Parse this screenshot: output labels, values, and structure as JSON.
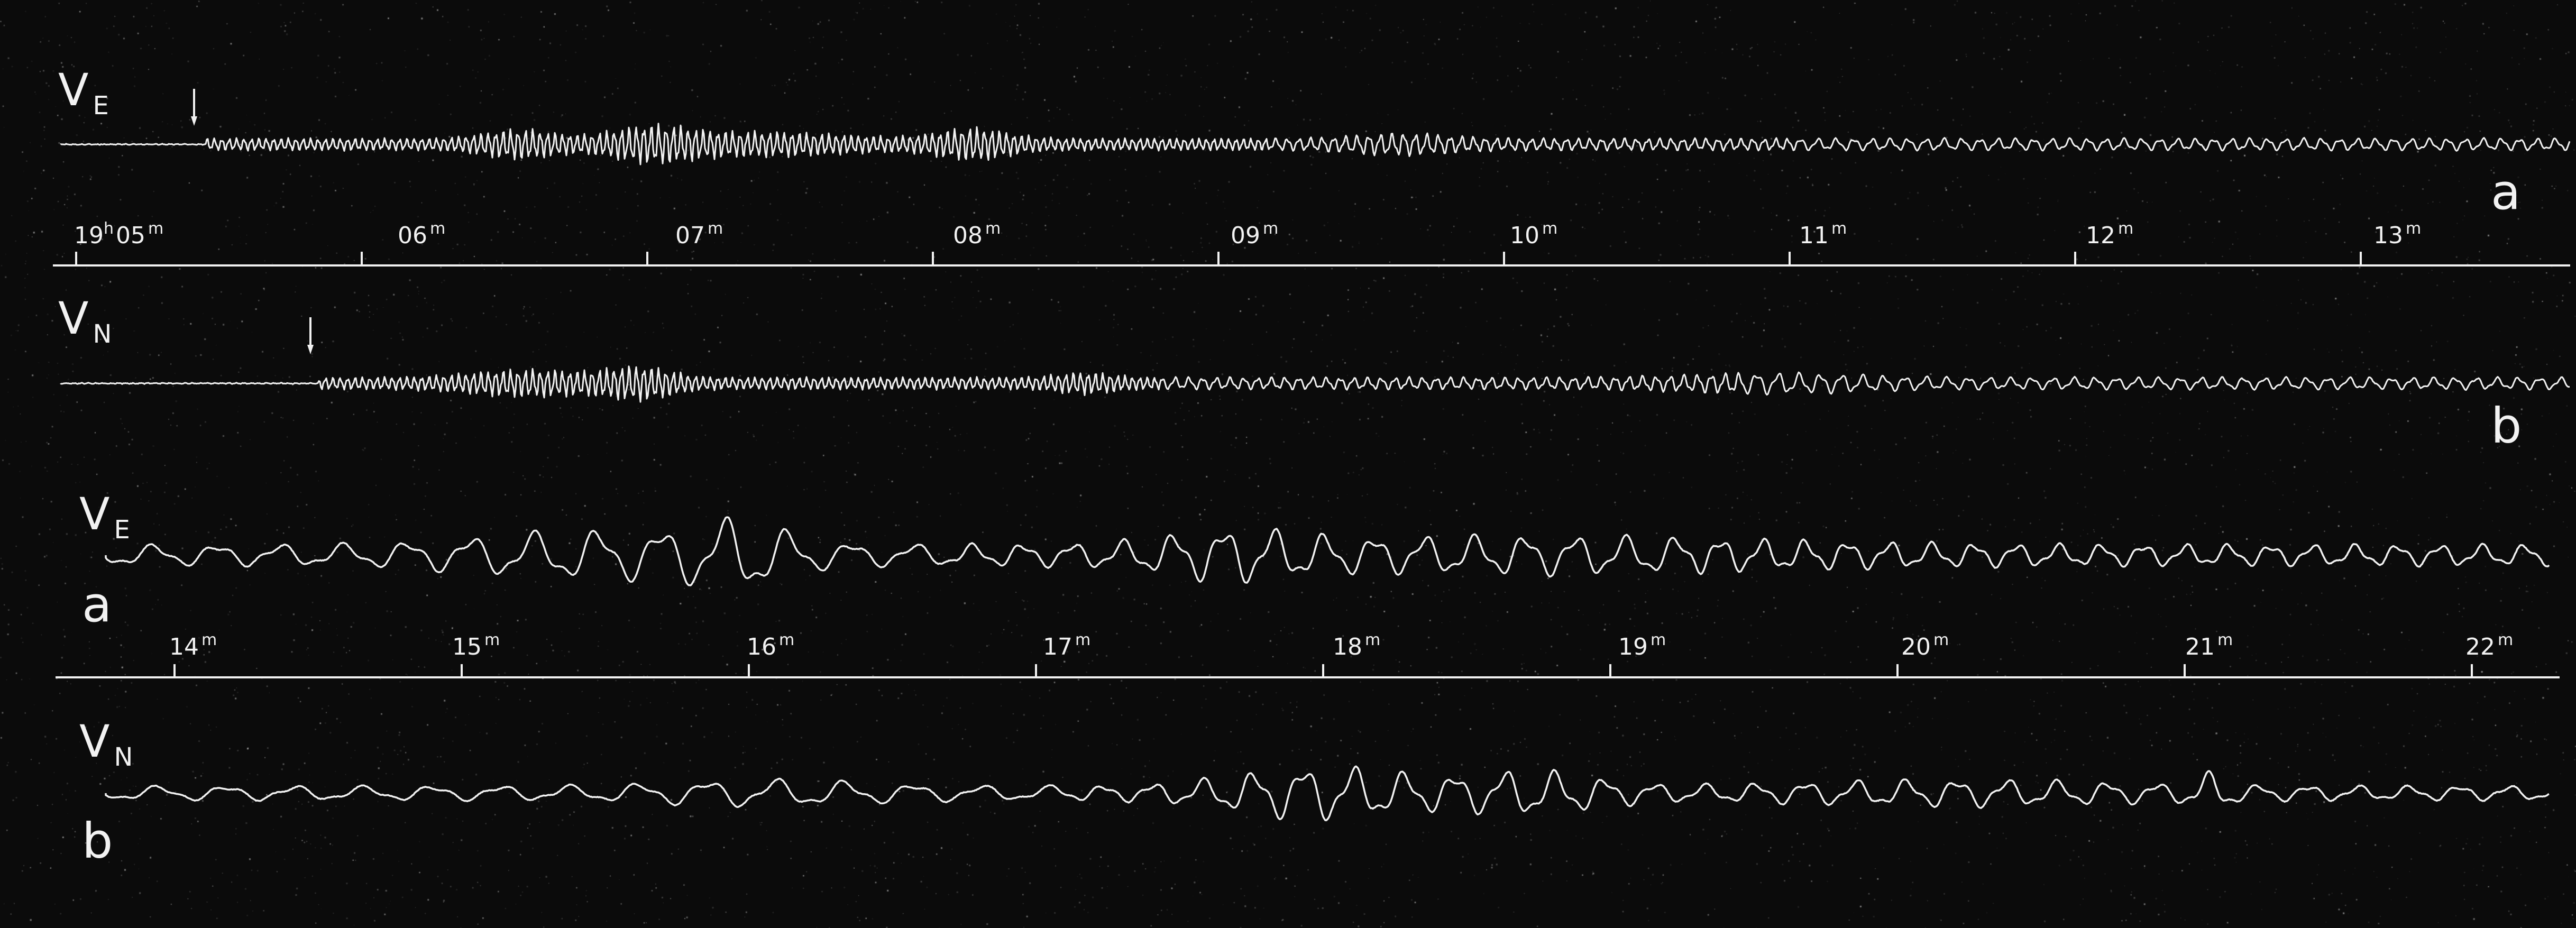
{
  "figure": {
    "background": "#0b0b0b",
    "ink": "#f2f2f2"
  },
  "record1": {
    "upper_trace": {
      "component": "V",
      "sub": "E",
      "panel": "a"
    },
    "lower_trace": {
      "component": "V",
      "sub": "N",
      "panel": "b"
    },
    "time_axis": {
      "start_hour": "19",
      "hour_unit": "h",
      "minute_unit": "m",
      "ticks": [
        "05",
        "06",
        "07",
        "08",
        "09",
        "10",
        "11",
        "12",
        "13"
      ]
    }
  },
  "record2": {
    "upper_trace": {
      "component": "V",
      "sub": "E",
      "panel": "a"
    },
    "lower_trace": {
      "component": "V",
      "sub": "N",
      "panel": "b"
    },
    "time_axis": {
      "minute_unit": "m",
      "ticks": [
        "14",
        "15",
        "16",
        "17",
        "18",
        "19",
        "20",
        "21",
        "22"
      ]
    }
  },
  "arrival_markers": {
    "upper_trace_minute": 5.45,
    "lower_trace_minute": 5.85
  }
}
